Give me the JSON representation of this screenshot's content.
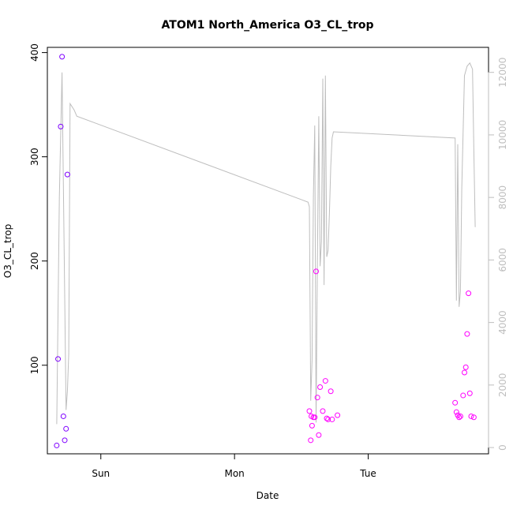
{
  "chart_data": {
    "type": "scatter",
    "title": "ATOM1 North_America O3_CL_trop",
    "xlabel": "Date",
    "ylabel": "O3_CL_trop",
    "x_tick_labels": [
      "Sun",
      "Mon",
      "Tue"
    ],
    "x_range_days": [
      -0.4,
      2.9
    ],
    "x_tick_positions_days": [
      0,
      1,
      2
    ],
    "ylim": [
      15,
      405
    ],
    "y_ticks": [
      100,
      200,
      300,
      400
    ],
    "y2lim": [
      -200,
      12800
    ],
    "y2_ticks": [
      0,
      2000,
      4000,
      6000,
      8000,
      10000,
      12000
    ],
    "grid": false,
    "colors": {
      "line": "#bebebe",
      "points_low_altitude": "#ff00ff",
      "points_high_altitude": "#7f00ff"
    },
    "secondary_line": {
      "color": "#bebebe",
      "x": [
        -0.33,
        -0.31,
        -0.29,
        -0.26,
        -0.25,
        -0.24,
        -0.23,
        -0.2,
        -0.18,
        1.55,
        1.56,
        1.57,
        1.58,
        1.59,
        1.6,
        1.61,
        1.62,
        1.63,
        1.64,
        1.65,
        1.66,
        1.67,
        1.68,
        1.69,
        1.7,
        1.71,
        1.72,
        1.73,
        1.74,
        2.65,
        2.66,
        2.67,
        2.68,
        2.69,
        2.7,
        2.72,
        2.74,
        2.76,
        2.78,
        2.79,
        2.8
      ],
      "y": [
        750,
        8000,
        12000,
        1200,
        1800,
        3000,
        11000,
        10800,
        10600,
        7850,
        7700,
        1500,
        2800,
        8050,
        10300,
        800,
        6000,
        10600,
        5800,
        6600,
        11800,
        5200,
        11900,
        6100,
        6300,
        7500,
        9000,
        9900,
        10100,
        9900,
        4700,
        9700,
        4500,
        5000,
        8300,
        11900,
        12200,
        12300,
        12100,
        9500,
        7050
      ]
    },
    "series": [
      {
        "color": "#7f00ff",
        "x": [
          -0.33,
          -0.32,
          -0.3,
          -0.29,
          -0.28,
          -0.27,
          -0.26,
          -0.25
        ],
        "y": [
          23,
          106,
          329,
          396,
          51,
          28,
          39,
          283
        ]
      },
      {
        "color": "#ff00ff",
        "x": [
          1.56,
          1.57,
          1.575,
          1.58,
          1.59,
          1.6,
          1.61,
          1.62,
          1.63,
          1.64,
          1.66,
          1.68,
          1.69,
          1.7,
          1.72,
          1.73,
          1.77
        ],
        "y": [
          56,
          28,
          51,
          42,
          50,
          50,
          190,
          69,
          33,
          79,
          56,
          85,
          49,
          48,
          75,
          48,
          52
        ]
      },
      {
        "color": "#ff00ff",
        "x": [
          2.65,
          2.66,
          2.67,
          2.68,
          2.69,
          2.71,
          2.72,
          2.73,
          2.74,
          2.75,
          2.76,
          2.77,
          2.79
        ],
        "y": [
          64,
          55,
          52,
          50,
          51,
          71,
          93,
          98,
          130,
          169,
          73,
          51,
          50
        ]
      }
    ],
    "notes_right_axis": "secondary right axis shows altitude values for grey line"
  }
}
